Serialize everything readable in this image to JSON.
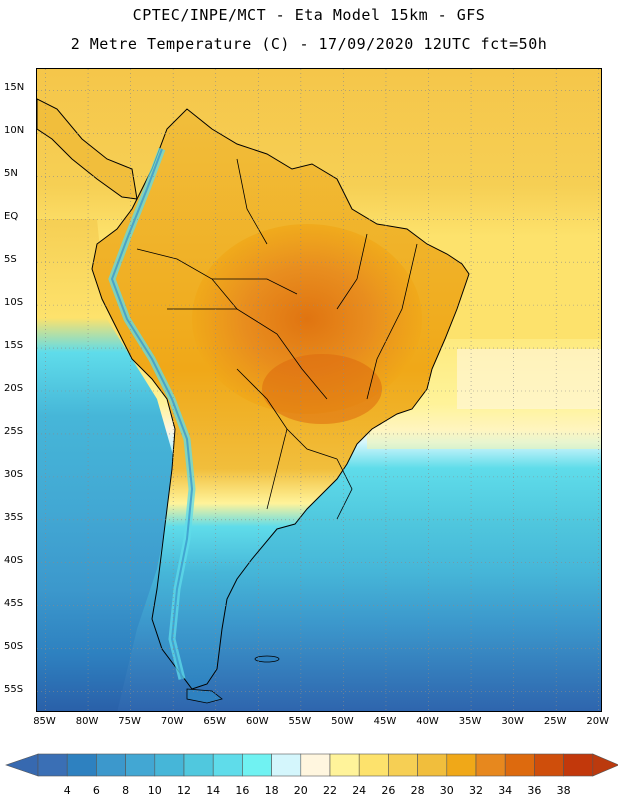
{
  "header": {
    "line1": "CPTEC/INPE/MCT -  Eta Model 15km - GFS",
    "line2": "2 Metre Temperature (C) - 17/09/2020 12UTC fct=50h"
  },
  "map": {
    "lat_labels": [
      "15N",
      "10N",
      "5N",
      "EQ",
      "5S",
      "10S",
      "15S",
      "20S",
      "25S",
      "30S",
      "35S",
      "40S",
      "45S",
      "50S",
      "55S"
    ],
    "lon_labels": [
      "85W",
      "80W",
      "75W",
      "70W",
      "65W",
      "60W",
      "55W",
      "50W",
      "45W",
      "40W",
      "35W",
      "30W",
      "25W",
      "20W"
    ],
    "lat_range": [
      17.5,
      -57.5
    ],
    "lon_range": [
      -86,
      -19.5
    ]
  },
  "colorbar": {
    "labels": [
      "4",
      "6",
      "8",
      "10",
      "12",
      "14",
      "16",
      "18",
      "20",
      "22",
      "24",
      "26",
      "28",
      "30",
      "32",
      "34",
      "36",
      "38"
    ],
    "colors": [
      "#3a6fb5",
      "#2e81c0",
      "#3c98cc",
      "#42a7d3",
      "#46b6d8",
      "#50c8de",
      "#5fdcea",
      "#70f2f2",
      "#d4f6fc",
      "#fff6df",
      "#fff39a",
      "#fde26c",
      "#f6cf54",
      "#f1be3c",
      "#f0a818",
      "#e7881e",
      "#dd6a0e",
      "#cf4e0b",
      "#c2380b"
    ],
    "arrow_low": "#3769b0",
    "arrow_high": "#bb3a0e"
  }
}
